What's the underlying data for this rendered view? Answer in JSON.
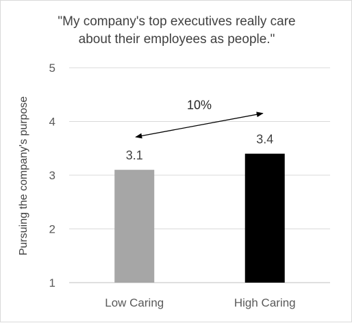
{
  "chart_data": {
    "type": "bar",
    "title_lines": [
      "\"My company's top executives really care",
      "about their employees as people.\""
    ],
    "xlabel": "",
    "ylabel": "Pursuing the company's purpose",
    "categories": [
      "Low Caring",
      "High Caring"
    ],
    "values": [
      3.1,
      3.4
    ],
    "data_labels": [
      "3.1",
      "3.4"
    ],
    "bar_colors": [
      "#a6a6a6",
      "#000000"
    ],
    "ylim": [
      1,
      5
    ],
    "yticks": [
      1,
      2,
      3,
      4,
      5
    ],
    "grid": true,
    "legend": "none",
    "annotation": {
      "text": "10%",
      "arrow": "double-headed, from Low Caring bar to High Caring bar"
    }
  }
}
